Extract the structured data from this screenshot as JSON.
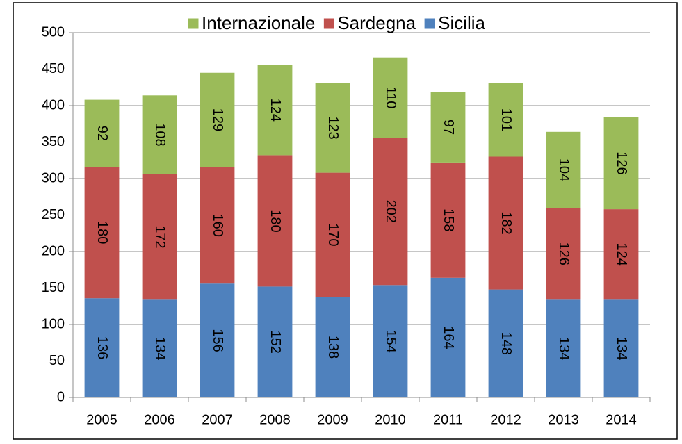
{
  "chart_data": {
    "type": "stacked_bar",
    "categories": [
      "2005",
      "2006",
      "2007",
      "2008",
      "2009",
      "2010",
      "2011",
      "2012",
      "2013",
      "2014"
    ],
    "series": [
      {
        "name": "Sicilia",
        "color": "#4f81bd",
        "values": [
          136,
          134,
          156,
          152,
          138,
          154,
          164,
          148,
          134,
          134
        ]
      },
      {
        "name": "Sardegna",
        "color": "#c0504d",
        "values": [
          180,
          172,
          160,
          180,
          170,
          202,
          158,
          182,
          126,
          124
        ]
      },
      {
        "name": "Internazionale",
        "color": "#9bbb59",
        "values": [
          92,
          108,
          129,
          124,
          123,
          110,
          97,
          101,
          104,
          126
        ]
      }
    ],
    "ylim": [
      0,
      500
    ],
    "yticks": [
      0,
      50,
      100,
      150,
      200,
      250,
      300,
      350,
      400,
      450,
      500
    ],
    "grid": true,
    "legend": "top"
  }
}
